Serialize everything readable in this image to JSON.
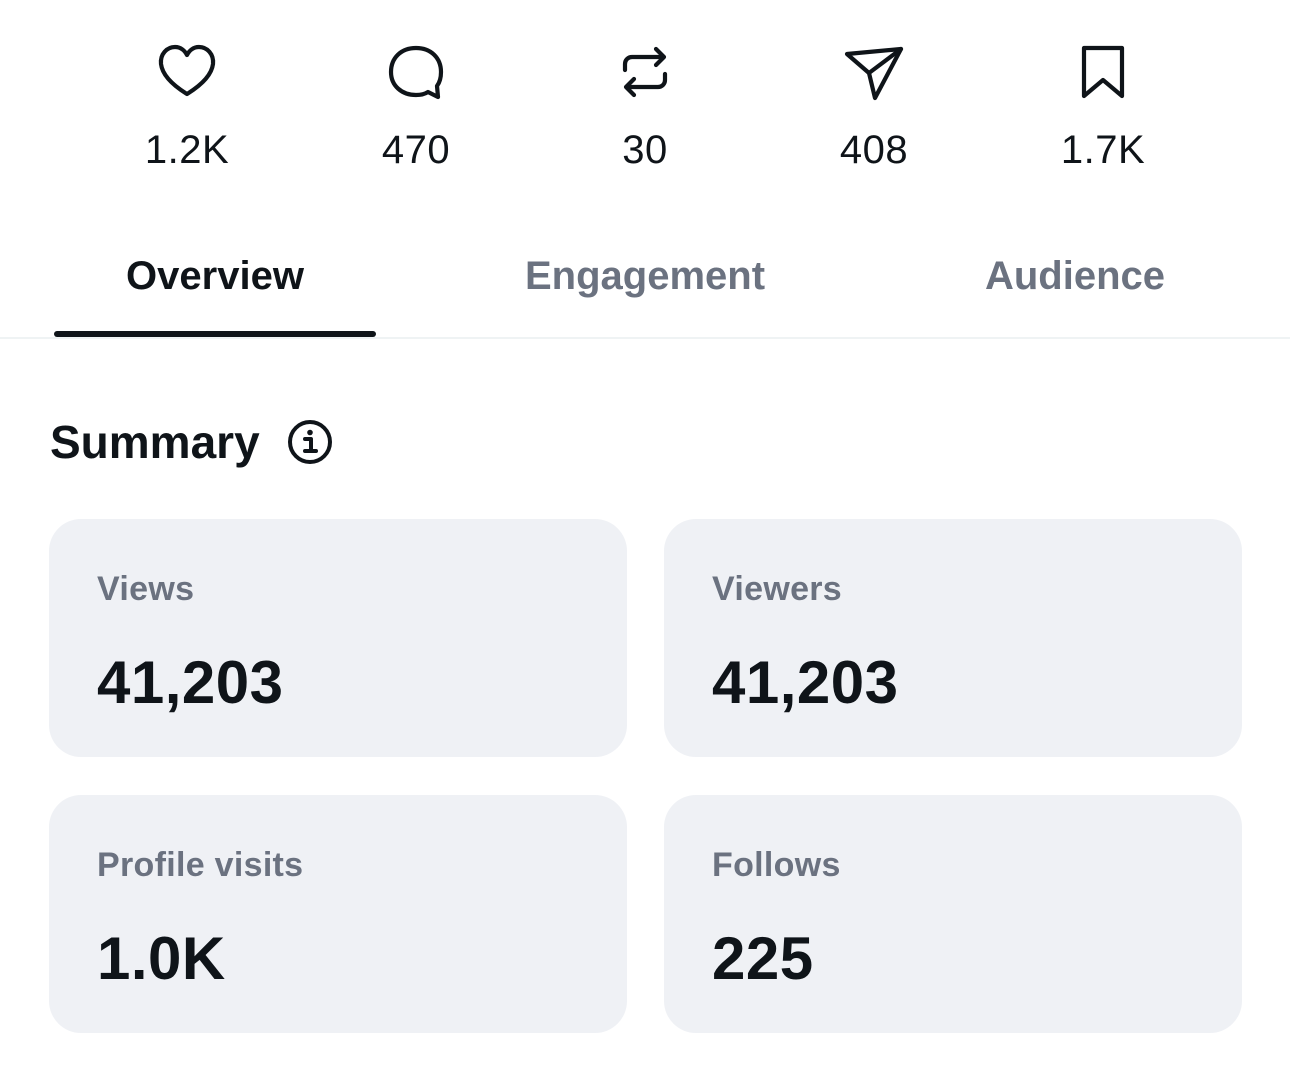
{
  "engagement_bar": {
    "likes": {
      "icon": "heart-icon",
      "count": "1.2K"
    },
    "replies": {
      "icon": "comment-icon",
      "count": "470"
    },
    "reposts": {
      "icon": "repost-icon",
      "count": "30"
    },
    "shares": {
      "icon": "share-icon",
      "count": "408"
    },
    "bookmarks": {
      "icon": "bookmark-icon",
      "count": "1.7K"
    }
  },
  "tabs": [
    {
      "label": "Overview",
      "active": true
    },
    {
      "label": "Engagement",
      "active": false
    },
    {
      "label": "Audience",
      "active": false
    }
  ],
  "summary": {
    "title": "Summary",
    "info_icon": "info-icon",
    "cards": [
      {
        "label": "Views",
        "value": "41,203"
      },
      {
        "label": "Viewers",
        "value": "41,203"
      },
      {
        "label": "Profile visits",
        "value": "1.0K"
      },
      {
        "label": "Follows",
        "value": "225"
      }
    ]
  },
  "colors": {
    "text_primary": "#0f1419",
    "text_secondary": "#6b7280",
    "card_background": "#eff1f5",
    "divider": "#eff3f4"
  }
}
